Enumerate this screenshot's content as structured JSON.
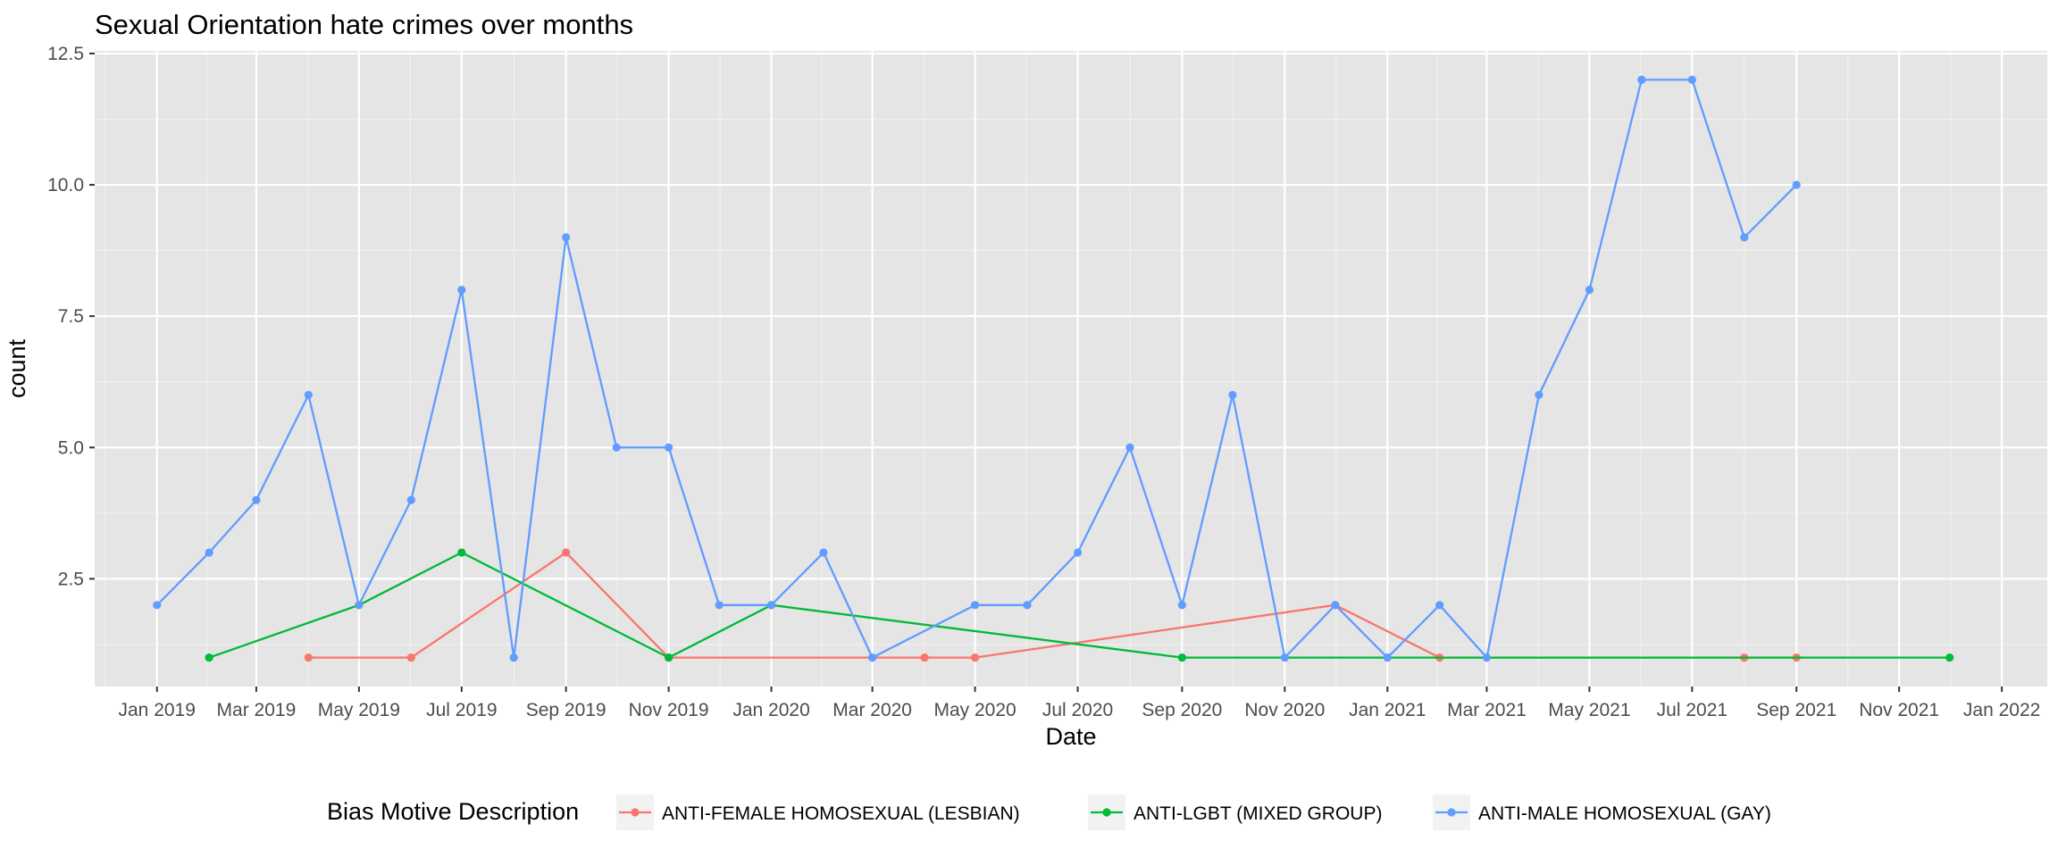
{
  "chart_data": {
    "type": "line",
    "title": "Sexual Orientation hate crimes over months",
    "xlabel": "Date",
    "ylabel": "count",
    "x_tick_labels": [
      "Jan 2019",
      "Mar 2019",
      "May 2019",
      "Jul 2019",
      "Sep 2019",
      "Nov 2019",
      "Jan 2020",
      "Mar 2020",
      "May 2020",
      "Jul 2020",
      "Sep 2020",
      "Nov 2020",
      "Jan 2021",
      "Mar 2021",
      "May 2021",
      "Jul 2021",
      "Sep 2021",
      "Nov 2021",
      "Jan 2022"
    ],
    "x_ticks": [
      "2019-01",
      "2019-03",
      "2019-05",
      "2019-07",
      "2019-09",
      "2019-11",
      "2020-01",
      "2020-03",
      "2020-05",
      "2020-07",
      "2020-09",
      "2020-11",
      "2021-01",
      "2021-03",
      "2021-05",
      "2021-07",
      "2021-09",
      "2021-11",
      "2022-01"
    ],
    "y_tick_labels": [
      "2.5",
      "5.0",
      "7.5",
      "10.0",
      "12.5"
    ],
    "y_ticks": [
      2.5,
      5.0,
      7.5,
      10.0,
      12.5
    ],
    "xlim": [
      "2018-11-25",
      "2022-01-28"
    ],
    "ylim": [
      0.45,
      12.55
    ],
    "grid": true,
    "legend": {
      "title": "Bias Motive Description",
      "placement": "bottom"
    },
    "series": [
      {
        "name": "ANTI-FEMALE HOMOSEXUAL (LESBIAN)",
        "color": "#F8766D",
        "points": [
          {
            "x": "2019-04",
            "y": 1
          },
          {
            "x": "2019-06",
            "y": 1
          },
          {
            "x": "2019-09",
            "y": 3
          },
          {
            "x": "2019-11",
            "y": 1
          },
          {
            "x": "2020-04",
            "y": 1
          },
          {
            "x": "2020-05",
            "y": 1
          },
          {
            "x": "2020-12",
            "y": 2
          },
          {
            "x": "2021-02",
            "y": 1
          },
          {
            "x": "2021-08",
            "y": 1
          },
          {
            "x": "2021-09",
            "y": 1
          }
        ]
      },
      {
        "name": "ANTI-LGBT (MIXED GROUP)",
        "color": "#00BA38",
        "points": [
          {
            "x": "2019-02",
            "y": 1
          },
          {
            "x": "2019-05",
            "y": 2
          },
          {
            "x": "2019-07",
            "y": 3
          },
          {
            "x": "2019-11",
            "y": 1
          },
          {
            "x": "2020-01",
            "y": 2
          },
          {
            "x": "2020-09",
            "y": 1
          },
          {
            "x": "2021-12",
            "y": 1
          }
        ]
      },
      {
        "name": "ANTI-MALE HOMOSEXUAL (GAY)",
        "color": "#619CFF",
        "points": [
          {
            "x": "2019-01",
            "y": 2
          },
          {
            "x": "2019-02",
            "y": 3
          },
          {
            "x": "2019-03",
            "y": 4
          },
          {
            "x": "2019-04",
            "y": 6
          },
          {
            "x": "2019-05",
            "y": 2
          },
          {
            "x": "2019-06",
            "y": 4
          },
          {
            "x": "2019-07",
            "y": 8
          },
          {
            "x": "2019-08",
            "y": 1
          },
          {
            "x": "2019-09",
            "y": 9
          },
          {
            "x": "2019-10",
            "y": 5
          },
          {
            "x": "2019-11",
            "y": 5
          },
          {
            "x": "2019-12",
            "y": 2
          },
          {
            "x": "2020-01",
            "y": 2
          },
          {
            "x": "2020-02",
            "y": 3
          },
          {
            "x": "2020-03",
            "y": 1
          },
          {
            "x": "2020-05",
            "y": 2
          },
          {
            "x": "2020-06",
            "y": 2
          },
          {
            "x": "2020-07",
            "y": 3
          },
          {
            "x": "2020-08",
            "y": 5
          },
          {
            "x": "2020-09",
            "y": 2
          },
          {
            "x": "2020-10",
            "y": 6
          },
          {
            "x": "2020-11",
            "y": 1
          },
          {
            "x": "2020-12",
            "y": 2
          },
          {
            "x": "2021-01",
            "y": 1
          },
          {
            "x": "2021-02",
            "y": 2
          },
          {
            "x": "2021-03",
            "y": 1
          },
          {
            "x": "2021-04",
            "y": 6
          },
          {
            "x": "2021-05",
            "y": 8
          },
          {
            "x": "2021-06",
            "y": 12
          },
          {
            "x": "2021-07",
            "y": 12
          },
          {
            "x": "2021-08",
            "y": 9
          },
          {
            "x": "2021-09",
            "y": 10
          }
        ]
      }
    ]
  }
}
